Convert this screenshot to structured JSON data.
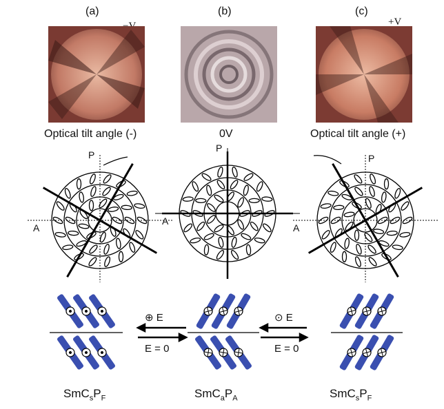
{
  "panels": [
    {
      "letter": "(a)",
      "voltage": "−V",
      "caption": "Optical tilt angle (-)"
    },
    {
      "letter": "(b)",
      "voltage": "",
      "caption": "0V"
    },
    {
      "letter": "(c)",
      "voltage": "+V",
      "caption": "Optical tilt angle (+)"
    }
  ],
  "axis_labels": {
    "polarizer": "P",
    "analyzer": "A"
  },
  "transitions": {
    "left_top": "⊕ E",
    "left_bottom": "E = 0",
    "right_top": "⊙ E",
    "right_bottom": "E = 0"
  },
  "phases": [
    {
      "main": "SmC",
      "sub1": "s",
      "mid": "P",
      "sub2": "F"
    },
    {
      "main": "SmC",
      "sub1": "a",
      "mid": "P",
      "sub2": "A"
    },
    {
      "main": "SmC",
      "sub1": "s",
      "mid": "P",
      "sub2": "F"
    }
  ],
  "colors": {
    "molecule": "#3a4fb0",
    "photo_bg": "#a85a4e"
  }
}
